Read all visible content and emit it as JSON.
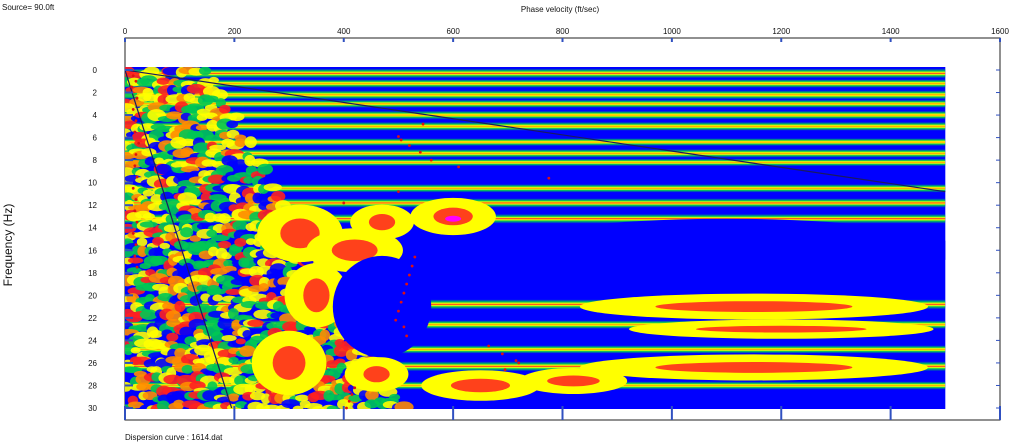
{
  "source_label": "Source= 90.0ft",
  "footer_label": "Dispersion curve : 1614.dat",
  "chart_data": {
    "type": "heatmap",
    "title": "",
    "xlabel": "Phase velocity (ft/sec)",
    "ylabel": "Frequency (Hz)",
    "x_axis_position": "top",
    "y_axis_direction": "down",
    "xlim": [
      0,
      1600
    ],
    "ylim": [
      0,
      30
    ],
    "x_ticks": [
      0,
      200,
      400,
      600,
      800,
      1000,
      1200,
      1400,
      1600
    ],
    "y_ticks": [
      0,
      2,
      4,
      6,
      8,
      10,
      12,
      14,
      16,
      18,
      20,
      22,
      24,
      26,
      28,
      30
    ],
    "data_x_extent": [
      0,
      1500
    ],
    "colormap": {
      "low": "#0000ff",
      "mid_low": "#00c853",
      "mid": "#ffff00",
      "mid_high": "#ff8c00",
      "high": "#ff2020",
      "peak": "#ff00ff"
    },
    "background_color": "#0000ff",
    "energy_bands_hz": [
      {
        "f": 0.3,
        "intensity": 0.9
      },
      {
        "f": 1.2,
        "intensity": 0.7
      },
      {
        "f": 2.2,
        "intensity": 0.8
      },
      {
        "f": 3.0,
        "intensity": 0.6
      },
      {
        "f": 4.0,
        "intensity": 0.7
      },
      {
        "f": 5.0,
        "intensity": 0.75
      },
      {
        "f": 6.4,
        "intensity": 0.55
      },
      {
        "f": 7.4,
        "intensity": 0.7
      },
      {
        "f": 8.2,
        "intensity": 0.5
      },
      {
        "f": 10.5,
        "intensity": 0.65
      },
      {
        "f": 11.8,
        "intensity": 0.85
      },
      {
        "f": 13.2,
        "intensity": 0.9
      },
      {
        "f": 20.8,
        "intensity": 0.95
      },
      {
        "f": 22.6,
        "intensity": 0.7
      },
      {
        "f": 24.8,
        "intensity": 0.6
      },
      {
        "f": 26.3,
        "intensity": 0.95
      },
      {
        "f": 28.0,
        "intensity": 0.6
      }
    ],
    "line_series": [
      {
        "points": [
          [
            0,
            0
          ],
          [
            1500,
            10.8
          ]
        ]
      },
      {
        "points": [
          [
            0,
            0
          ],
          [
            195,
            30
          ]
        ]
      }
    ],
    "picked_points": [
      [
        15,
        0.5
      ],
      [
        20,
        1.0
      ],
      [
        12,
        1.5
      ],
      [
        22,
        2.5
      ],
      [
        15,
        3.5
      ],
      [
        20,
        4.5
      ],
      [
        18,
        5.5
      ],
      [
        25,
        6.5
      ],
      [
        20,
        7.5
      ],
      [
        18,
        8.5
      ],
      [
        22,
        9.5
      ],
      [
        15,
        10.5
      ],
      [
        20,
        11.5
      ],
      [
        18,
        12.5
      ],
      [
        22,
        13.5
      ],
      [
        15,
        14.5
      ],
      [
        20,
        15.5
      ],
      [
        18,
        16.5
      ],
      [
        22,
        17.5
      ],
      [
        500,
        5.9
      ],
      [
        505,
        6.2
      ],
      [
        520,
        6.7
      ],
      [
        540,
        7.3
      ],
      [
        560,
        8.0
      ],
      [
        610,
        8.6
      ],
      [
        775,
        9.6
      ],
      [
        500,
        10.8
      ],
      [
        400,
        11.8
      ],
      [
        530,
        16.6
      ],
      [
        525,
        17.4
      ],
      [
        520,
        18.2
      ],
      [
        515,
        19.0
      ],
      [
        510,
        19.8
      ],
      [
        505,
        20.6
      ],
      [
        500,
        21.4
      ],
      [
        495,
        22.2
      ],
      [
        510,
        22.8
      ],
      [
        515,
        23.6
      ],
      [
        420,
        28.2
      ],
      [
        415,
        28.8
      ],
      [
        410,
        29.4
      ],
      [
        405,
        30.0
      ],
      [
        665,
        24.5
      ],
      [
        690,
        25.2
      ],
      [
        715,
        25.8
      ],
      [
        695,
        26.6
      ],
      [
        720,
        26.0
      ],
      [
        545,
        4.8
      ]
    ]
  }
}
